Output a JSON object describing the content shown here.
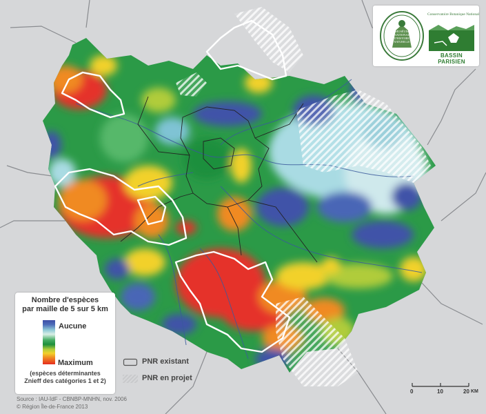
{
  "colors": {
    "background": "#d6d7d9",
    "ramp_min": "#3d4ea6",
    "ramp_max": "#e52b1f",
    "pnr_border": "#ffffff",
    "river": "#3a5a9c",
    "boundary": "#222222",
    "logo_green": "#2f7d32"
  },
  "logos": {
    "seal_lines": [
      "MUSÉUM",
      "NATIONAL",
      "D'HISTOIRE",
      "NATURELLE"
    ],
    "cbn_top": "Conservatoire Botanique National",
    "cbn_name": "BASSIN PARISIEN"
  },
  "legend": {
    "title_line1": "Nombre d'espèces",
    "title_line2": "par maille de 5 sur 5 km",
    "min_label": "Aucune",
    "max_label": "Maximum",
    "note_line1": "(espèces déterminantes",
    "note_line2": "Znieff des catégories 1 et 2)"
  },
  "pnr": {
    "existing_label": "PNR existant",
    "planned_label": "PNR en projet"
  },
  "source": {
    "line1": "Source : IAU-îdF - CBNBP-MNHN, nov. 2006",
    "line2": "© Région Île-de-France 2013"
  },
  "scale": {
    "labels": [
      "0",
      "10",
      "20"
    ],
    "unit": "KM"
  }
}
